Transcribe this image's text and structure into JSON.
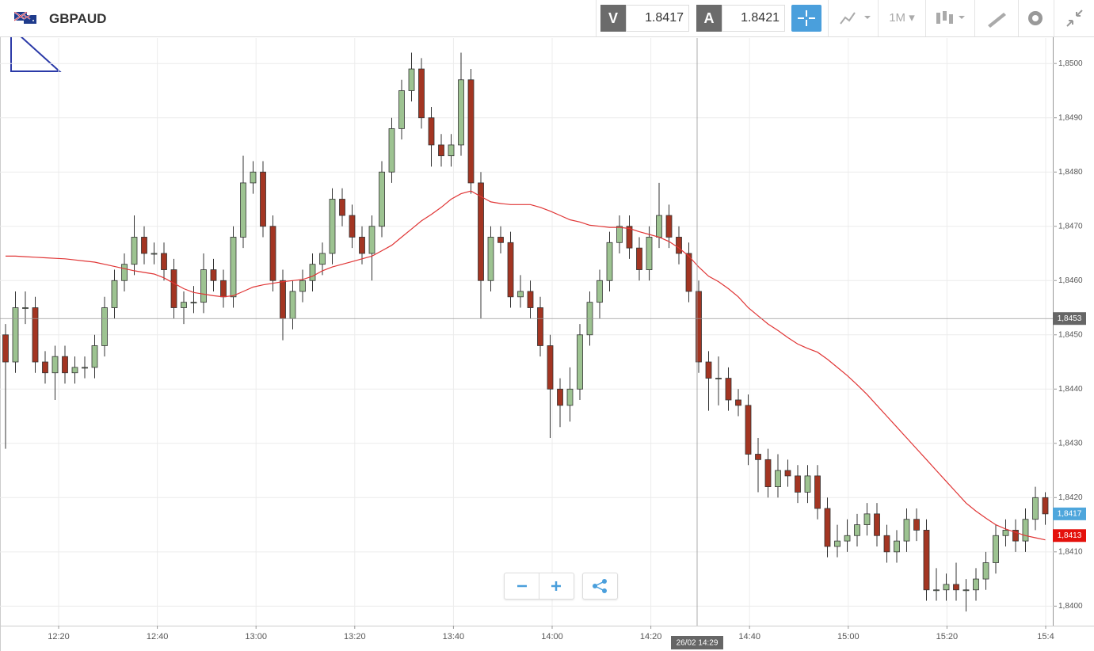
{
  "header": {
    "symbol": "GBPAUD",
    "bid_label": "V",
    "bid": 1.8417,
    "ask_label": "A",
    "ask": 1.8421,
    "timeframe": "1M"
  },
  "chart_data": {
    "type": "candlestick",
    "open": [
      1.845,
      1.8445,
      1.8455,
      1.8455,
      1.8445,
      1.8443,
      1.8446,
      1.8443,
      1.8444,
      1.8444,
      1.8448,
      1.8455,
      1.846,
      1.8463,
      1.8468,
      1.8465,
      1.8465,
      1.8462,
      1.8455,
      1.8456,
      1.8456,
      1.8462,
      1.846,
      1.8457,
      1.8468,
      1.8478,
      1.848,
      1.847,
      1.846,
      1.8453,
      1.8458,
      1.846,
      1.8463,
      1.8465,
      1.8475,
      1.8472,
      1.8468,
      1.8465,
      1.847,
      1.848,
      1.8488,
      1.8495,
      1.8499,
      1.849,
      1.8485,
      1.8483,
      1.8485,
      1.8497,
      1.8478,
      1.846,
      1.8468,
      1.8467,
      1.8457,
      1.8458,
      1.8455,
      1.8448,
      1.844,
      1.8437,
      1.844,
      1.845,
      1.8456,
      1.846,
      1.8467,
      1.847,
      1.8466,
      1.8462,
      1.8468,
      1.8472,
      1.8468,
      1.8465,
      1.8458,
      1.8445,
      1.8442,
      1.8442,
      1.8438,
      1.8437,
      1.8428,
      1.8427,
      1.8422,
      1.8425,
      1.8424,
      1.8421,
      1.8424,
      1.8418,
      1.8411,
      1.8412,
      1.8413,
      1.8415,
      1.8417,
      1.8413,
      1.841,
      1.8412,
      1.8416,
      1.8414,
      1.8403,
      1.8403,
      1.8404,
      1.8403,
      1.8403,
      1.8405,
      1.8408,
      1.8413,
      1.8414,
      1.8412,
      1.8416,
      1.842
    ],
    "high": [
      1.8452,
      1.8458,
      1.8458,
      1.8457,
      1.8447,
      1.8448,
      1.8448,
      1.8446,
      1.8446,
      1.845,
      1.8457,
      1.8462,
      1.8465,
      1.8472,
      1.847,
      1.8467,
      1.8467,
      1.8464,
      1.8458,
      1.8459,
      1.8465,
      1.8464,
      1.8462,
      1.847,
      1.8483,
      1.8482,
      1.8482,
      1.8472,
      1.8462,
      1.846,
      1.8462,
      1.8465,
      1.8467,
      1.8477,
      1.8477,
      1.8474,
      1.847,
      1.8472,
      1.8482,
      1.849,
      1.8497,
      1.8502,
      1.8501,
      1.8492,
      1.8487,
      1.8487,
      1.8502,
      1.8499,
      1.848,
      1.847,
      1.847,
      1.8469,
      1.8461,
      1.846,
      1.8457,
      1.845,
      1.8442,
      1.8444,
      1.8452,
      1.8458,
      1.8462,
      1.8469,
      1.8472,
      1.8472,
      1.8468,
      1.847,
      1.8478,
      1.8474,
      1.847,
      1.8467,
      1.846,
      1.8447,
      1.8446,
      1.8444,
      1.844,
      1.8439,
      1.8431,
      1.8429,
      1.8428,
      1.8427,
      1.8426,
      1.8426,
      1.8426,
      1.842,
      1.8415,
      1.8416,
      1.8417,
      1.8419,
      1.8419,
      1.8415,
      1.8414,
      1.8418,
      1.8418,
      1.8416,
      1.8407,
      1.8406,
      1.8408,
      1.8405,
      1.8407,
      1.841,
      1.8415,
      1.8416,
      1.8416,
      1.8418,
      1.8422,
      1.8421
    ],
    "low": [
      1.8429,
      1.8443,
      1.8452,
      1.8443,
      1.8441,
      1.8438,
      1.8441,
      1.8441,
      1.8442,
      1.8442,
      1.8446,
      1.8453,
      1.8458,
      1.8461,
      1.8463,
      1.8463,
      1.846,
      1.8453,
      1.8452,
      1.8454,
      1.8454,
      1.8458,
      1.8455,
      1.8455,
      1.8466,
      1.8476,
      1.8468,
      1.8458,
      1.8449,
      1.8451,
      1.8456,
      1.8458,
      1.8461,
      1.8463,
      1.847,
      1.8466,
      1.8463,
      1.846,
      1.8468,
      1.8478,
      1.8486,
      1.8493,
      1.8488,
      1.8481,
      1.8481,
      1.8481,
      1.8483,
      1.8476,
      1.8453,
      1.8458,
      1.8465,
      1.8455,
      1.8455,
      1.8453,
      1.8446,
      1.8431,
      1.8433,
      1.8434,
      1.8438,
      1.8448,
      1.8453,
      1.8458,
      1.8465,
      1.8464,
      1.846,
      1.846,
      1.8466,
      1.8466,
      1.8463,
      1.8456,
      1.8443,
      1.8436,
      1.8437,
      1.8436,
      1.8435,
      1.8426,
      1.8421,
      1.842,
      1.842,
      1.8422,
      1.8419,
      1.8419,
      1.8416,
      1.8409,
      1.8409,
      1.841,
      1.8411,
      1.8413,
      1.8411,
      1.8408,
      1.8408,
      1.841,
      1.8412,
      1.8401,
      1.8401,
      1.8401,
      1.8401,
      1.8399,
      1.8401,
      1.8403,
      1.8406,
      1.8411,
      1.841,
      1.841,
      1.8414,
      1.8415
    ],
    "close": [
      1.8445,
      1.8455,
      1.8455,
      1.8445,
      1.8443,
      1.8446,
      1.8443,
      1.8444,
      1.8444,
      1.8448,
      1.8455,
      1.846,
      1.8463,
      1.8468,
      1.8465,
      1.8465,
      1.8462,
      1.8455,
      1.8456,
      1.8456,
      1.8462,
      1.846,
      1.8457,
      1.8468,
      1.8478,
      1.848,
      1.847,
      1.846,
      1.8453,
      1.8458,
      1.846,
      1.8463,
      1.8465,
      1.8475,
      1.8472,
      1.8468,
      1.8465,
      1.847,
      1.848,
      1.8488,
      1.8495,
      1.8499,
      1.849,
      1.8485,
      1.8483,
      1.8485,
      1.8497,
      1.8478,
      1.846,
      1.8468,
      1.8467,
      1.8457,
      1.8458,
      1.8455,
      1.8448,
      1.844,
      1.8437,
      1.844,
      1.845,
      1.8456,
      1.846,
      1.8467,
      1.847,
      1.8466,
      1.8462,
      1.8468,
      1.8472,
      1.8468,
      1.8465,
      1.8458,
      1.8445,
      1.8442,
      1.8442,
      1.8438,
      1.8437,
      1.8428,
      1.8427,
      1.8422,
      1.8425,
      1.8424,
      1.8421,
      1.8424,
      1.8418,
      1.8411,
      1.8412,
      1.8413,
      1.8415,
      1.8417,
      1.8413,
      1.841,
      1.8412,
      1.8416,
      1.8414,
      1.8403,
      1.8403,
      1.8404,
      1.8403,
      1.8403,
      1.8405,
      1.8408,
      1.8413,
      1.8414,
      1.8412,
      1.8416,
      1.842,
      1.8417
    ],
    "moving_average": {
      "color": "#e03535",
      "values": [
        1.84645,
        1.84645,
        1.84644,
        1.84643,
        1.84642,
        1.84641,
        1.8464,
        1.84638,
        1.84636,
        1.84634,
        1.8463,
        1.84626,
        1.84622,
        1.84618,
        1.84615,
        1.84612,
        1.84605,
        1.84595,
        1.84585,
        1.84578,
        1.84575,
        1.84572,
        1.8457,
        1.84572,
        1.8458,
        1.84588,
        1.84592,
        1.84595,
        1.84598,
        1.846,
        1.84602,
        1.84608,
        1.84618,
        1.84625,
        1.8463,
        1.84635,
        1.8464,
        1.84645,
        1.84655,
        1.84665,
        1.8468,
        1.84695,
        1.8471,
        1.84722,
        1.84735,
        1.8475,
        1.8476,
        1.84765,
        1.84755,
        1.84745,
        1.84742,
        1.8474,
        1.8474,
        1.8474,
        1.84735,
        1.84728,
        1.8472,
        1.84712,
        1.84708,
        1.84702,
        1.847,
        1.84698,
        1.84698,
        1.84696,
        1.8469,
        1.84685,
        1.8468,
        1.84672,
        1.8466,
        1.84645,
        1.84625,
        1.84608,
        1.84598,
        1.84585,
        1.8457,
        1.8455,
        1.84535,
        1.8452,
        1.84508,
        1.84495,
        1.84483,
        1.84475,
        1.84468,
        1.84455,
        1.8444,
        1.84425,
        1.84408,
        1.8439,
        1.8437,
        1.8435,
        1.8433,
        1.8431,
        1.8429,
        1.8427,
        1.8425,
        1.8423,
        1.8421,
        1.8419,
        1.84175,
        1.84162,
        1.8415,
        1.84142,
        1.84136,
        1.8413,
        1.84126,
        1.84122
      ]
    },
    "up_color": "#9dc391",
    "down_color": "#a33522",
    "ylim": [
      1.83964,
      1.85047
    ],
    "yticks": [
      {
        "value": 1.84,
        "label": "1,8400"
      },
      {
        "value": 1.841,
        "label": "1,8410"
      },
      {
        "value": 1.842,
        "label": "1,8420"
      },
      {
        "value": 1.843,
        "label": "1,8430"
      },
      {
        "value": 1.844,
        "label": "1,8440"
      },
      {
        "value": 1.845,
        "label": "1,8450"
      },
      {
        "value": 1.846,
        "label": "1,8460"
      },
      {
        "value": 1.847,
        "label": "1,8470"
      },
      {
        "value": 1.848,
        "label": "1,8480"
      },
      {
        "value": 1.849,
        "label": "1,8490"
      },
      {
        "value": 1.85,
        "label": "1,8500"
      }
    ],
    "xticks": [
      "12:20",
      "12:40",
      "13:00",
      "13:20",
      "13:40",
      "14:00",
      "14:20",
      "14:40",
      "15:00",
      "15:20",
      "15:4"
    ],
    "grid": true,
    "crosshair": {
      "price": {
        "value": 1.8453,
        "label": "1,8453"
      },
      "time": "26/02 14:29"
    },
    "price_markers": [
      {
        "value": 1.8417,
        "label": "1,8417",
        "color": "#4ea6dc"
      },
      {
        "value": 1.8413,
        "label": "1,8413",
        "color": "#e4110c"
      }
    ]
  }
}
